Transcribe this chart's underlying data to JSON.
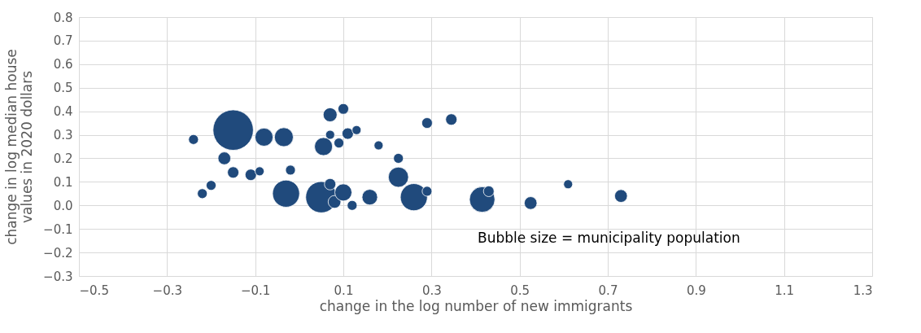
{
  "chart_data": {
    "type": "bubble",
    "xlabel": "change in the log number of new immigrants",
    "ylabel": "change in log median house values in 2020 dollars",
    "annotations": [
      "Bubble size = municipality population"
    ],
    "xlim": [
      -0.5,
      1.3
    ],
    "xticks": [
      -0.5,
      -0.3,
      -0.1,
      0.1,
      0.3,
      0.5,
      0.7,
      0.9,
      1.1,
      1.3
    ],
    "ylim": [
      -0.3,
      0.8
    ],
    "yticks": [
      -0.3,
      -0.2,
      -0.1,
      {
        "value": 0,
        "label": "0.0"
      },
      0.1,
      0.2,
      0.3,
      0.4,
      0.5,
      0.6,
      0.7,
      0.8
    ],
    "grid": true,
    "series": [
      {
        "color": "#204a7c",
        "x": [
          -0.24,
          -0.15,
          -0.08,
          -0.035,
          -0.17,
          -0.22,
          -0.2,
          -0.15,
          -0.11,
          -0.09,
          -0.02,
          -0.03,
          0.05,
          0.07,
          0.08,
          0.12,
          0.1,
          0.16,
          0.07,
          0.1,
          0.07,
          0.11,
          0.13,
          0.055,
          0.09,
          0.18,
          0.225,
          0.225,
          0.26,
          0.29,
          0.29,
          0.345,
          0.415,
          0.43,
          0.525,
          0.61,
          0.73
        ],
        "values": [
          0.28,
          0.32,
          0.29,
          0.29,
          0.2,
          0.05,
          0.085,
          0.14,
          0.13,
          0.145,
          0.15,
          0.05,
          0.035,
          0.09,
          0.015,
          0.0,
          0.055,
          0.035,
          0.385,
          0.41,
          0.3,
          0.305,
          0.32,
          0.25,
          0.265,
          0.255,
          0.2,
          0.12,
          0.035,
          0.06,
          0.35,
          0.365,
          0.025,
          0.06,
          0.01,
          0.09,
          0.04
        ],
        "sizes": [
          0.06,
          1,
          0.2,
          0.22,
          0.1,
          0.06,
          0.06,
          0.08,
          0.08,
          0.05,
          0.06,
          0.45,
          0.6,
          0.08,
          0.1,
          0.06,
          0.18,
          0.15,
          0.12,
          0.07,
          0.05,
          0.08,
          0.05,
          0.2,
          0.06,
          0.05,
          0.06,
          0.25,
          0.45,
          0.06,
          0.07,
          0.08,
          0.4,
          0.07,
          0.1,
          0.05,
          0.1
        ]
      }
    ]
  }
}
